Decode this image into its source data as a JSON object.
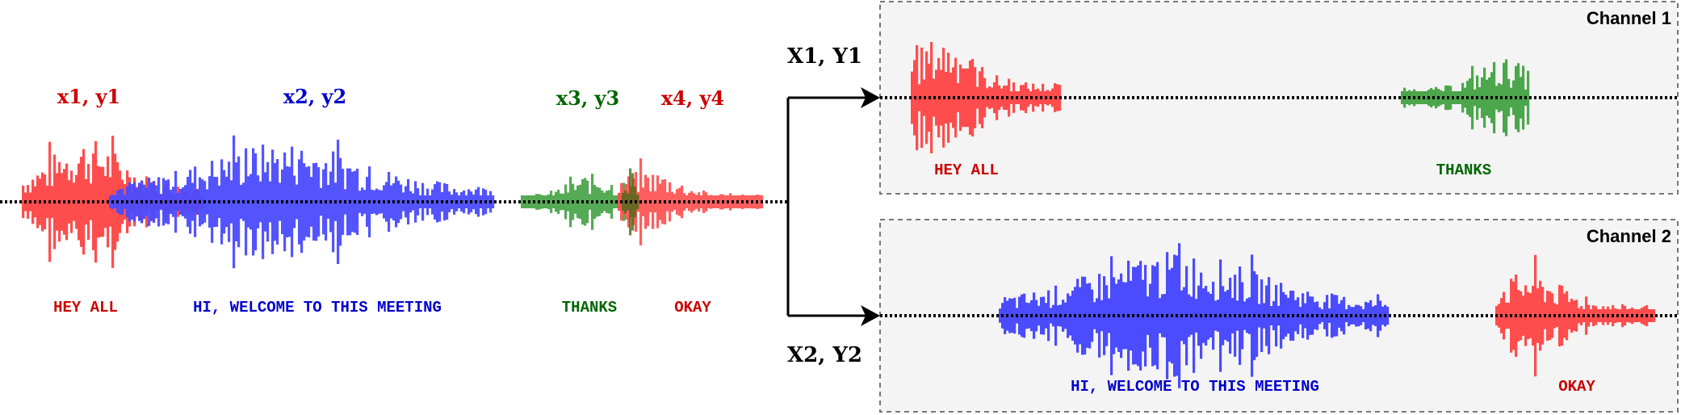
{
  "colors": {
    "red_wave": "#ff4d4d",
    "blue_wave": "#4b4bff",
    "green_wave": "#4ca64c",
    "red_text": "#cc0000",
    "blue_text": "#0000cc",
    "green_text": "#006600",
    "panel_bg": "#f4f4f4"
  },
  "mixed": {
    "segments": [
      {
        "id": "x1y1",
        "label": "x1, y1",
        "transcript": "HEY ALL",
        "color": "red"
      },
      {
        "id": "x2y2",
        "label": "x2, y2",
        "transcript": "HI, WELCOME TO THIS MEETING",
        "color": "blue"
      },
      {
        "id": "x3y3",
        "label": "x3, y3",
        "transcript": "THANKS",
        "color": "green"
      },
      {
        "id": "x4y4",
        "label": "x4, y4",
        "transcript": "OKAY",
        "color": "red"
      }
    ]
  },
  "outputs": {
    "label_1": "X1, Y1",
    "label_2": "X2, Y2"
  },
  "channels": [
    {
      "title": "Channel 1",
      "transcripts": [
        "HEY ALL",
        "THANKS"
      ]
    },
    {
      "title": "Channel 2",
      "transcripts": [
        "HI, WELCOME TO THIS MEETING",
        "OKAY"
      ]
    }
  ]
}
